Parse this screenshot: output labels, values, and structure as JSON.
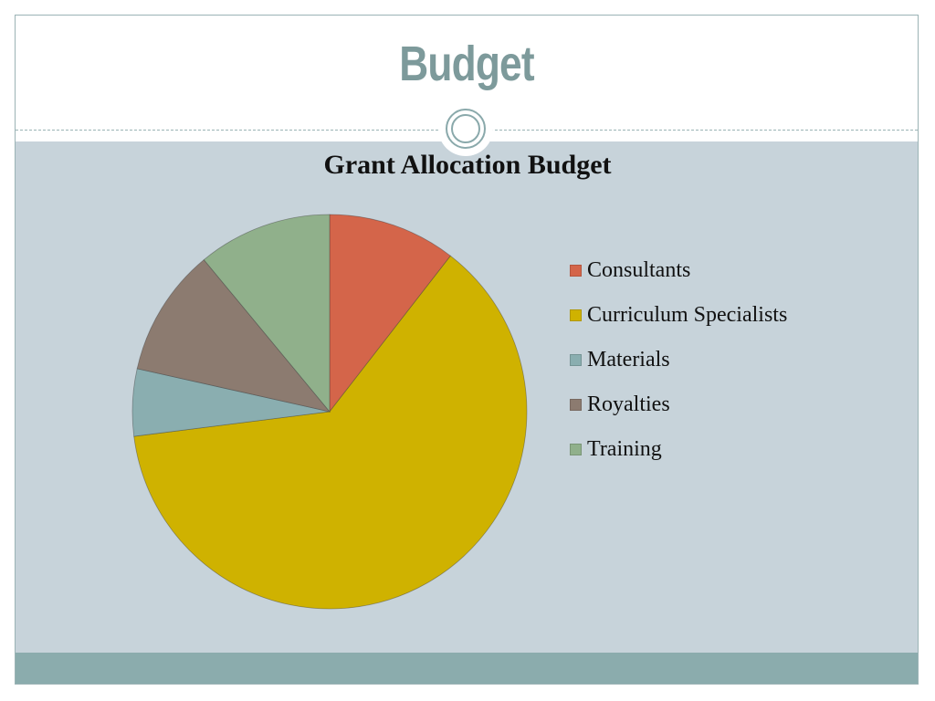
{
  "slide": {
    "title": "Budget"
  },
  "chart_data": {
    "type": "pie",
    "title": "Grant Allocation Budget",
    "categories": [
      "Consultants",
      "Curriculum Specialists",
      "Materials",
      "Royalties",
      "Training"
    ],
    "values": [
      10.5,
      62.5,
      5.5,
      10.5,
      11
    ],
    "slice_order_clockwise_from_top": [
      "Consultants",
      "Curriculum Specialists",
      "Materials",
      "Royalties",
      "Training"
    ],
    "colors": [
      "#d4654a",
      "#cfb200",
      "#8aaeb0",
      "#8c7b70",
      "#90b08b"
    ],
    "legend_position": "right"
  }
}
